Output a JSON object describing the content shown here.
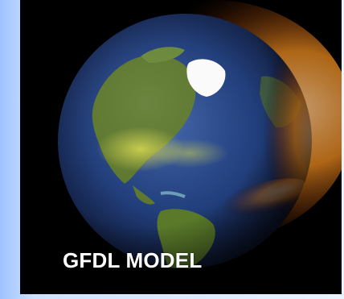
{
  "caption": "GFDL MODEL",
  "colors": {
    "background_left": "#9ec3ff",
    "background_right": "#eaf3ff",
    "frame": "#000000",
    "ocean": "#1e3a78",
    "land_green": "#5f7a2f",
    "ice": "#ffffff",
    "aurora_orange": "#f08a1a",
    "caption_text": "#ffffff"
  },
  "icons": {
    "globe": "earth-globe-icon"
  }
}
